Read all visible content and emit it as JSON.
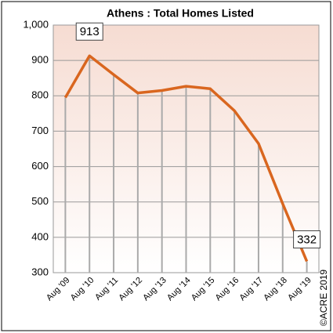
{
  "chart_data": {
    "type": "line",
    "title": "Athens : Total Homes Listed",
    "categories": [
      "Aug '09",
      "Aug '10",
      "Aug '11",
      "Aug '12",
      "Aug '13",
      "Aug '14",
      "Aug '15",
      "Aug '16",
      "Aug '17",
      "Aug '18",
      "Aug '19"
    ],
    "series": [
      {
        "name": "Total Homes Listed",
        "color": "#d9661f",
        "values": [
          795,
          913,
          860,
          808,
          815,
          827,
          820,
          758,
          665,
          495,
          332
        ],
        "value_labels": [
          null,
          "913",
          null,
          null,
          null,
          null,
          null,
          null,
          null,
          null,
          "332"
        ]
      }
    ],
    "ylim": [
      300,
      1000
    ],
    "yticks": [
      300,
      400,
      500,
      600,
      700,
      800,
      900,
      {
        "value": 1000,
        "label": "1,000"
      }
    ],
    "grid": true,
    "watermark": "©ACRE 2019"
  }
}
